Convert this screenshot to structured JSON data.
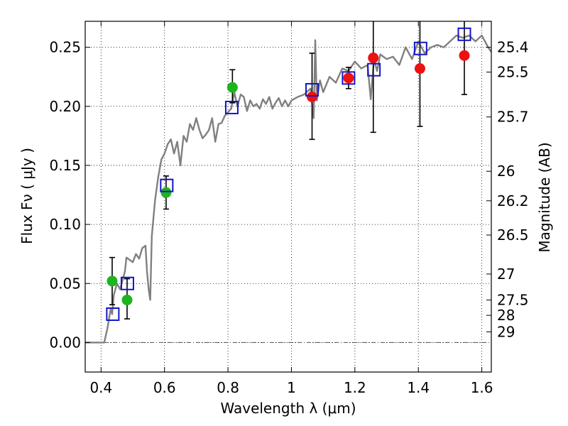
{
  "chart_data": {
    "type": "scatter",
    "xlabel": "Wavelength  λ (μm)",
    "ylabel": "Flux  Fν  ( μJy )",
    "y2label": "Magnitude (AB)",
    "xlim": [
      0.35,
      1.63
    ],
    "ylim": [
      -0.025,
      0.272
    ],
    "grid": true,
    "x_ticks": [
      0.4,
      0.6,
      0.8,
      1.0,
      1.2,
      1.4,
      1.6
    ],
    "x_tick_labels": [
      "0.4",
      "0.6",
      "0.8",
      "1",
      "1.2",
      "1.4",
      "1.6"
    ],
    "y_ticks": [
      0.0,
      0.05,
      0.1,
      0.15,
      0.2,
      0.25
    ],
    "y_tick_labels": [
      "0.00",
      "0.05",
      "0.10",
      "0.15",
      "0.20",
      "0.25"
    ],
    "mag_ticks": [
      {
        "label": "25.4",
        "flux": 0.25
      },
      {
        "label": "25.5",
        "flux": 0.229
      },
      {
        "label": "25.7",
        "flux": 0.191
      },
      {
        "label": "26",
        "flux": 0.145
      },
      {
        "label": "26.2",
        "flux": 0.12
      },
      {
        "label": "26.5",
        "flux": 0.091
      },
      {
        "label": "27",
        "flux": 0.058
      },
      {
        "label": "27.5",
        "flux": 0.036
      },
      {
        "label": "28",
        "flux": 0.023
      },
      {
        "label": "29",
        "flux": 0.009
      }
    ],
    "colors": {
      "model": "#808080",
      "green": "#1db51d",
      "red": "#ee1111",
      "blue_square": "#1414c8",
      "error": "#000000"
    },
    "series": [
      {
        "name": "Model SED",
        "style": "line",
        "x": [
          0.35,
          0.41,
          0.42,
          0.43,
          0.435,
          0.44,
          0.45,
          0.46,
          0.47,
          0.475,
          0.48,
          0.49,
          0.5,
          0.51,
          0.52,
          0.53,
          0.54,
          0.545,
          0.55,
          0.555,
          0.56,
          0.57,
          0.58,
          0.59,
          0.6,
          0.61,
          0.62,
          0.63,
          0.64,
          0.65,
          0.66,
          0.67,
          0.68,
          0.69,
          0.7,
          0.71,
          0.72,
          0.73,
          0.74,
          0.75,
          0.76,
          0.77,
          0.78,
          0.79,
          0.8,
          0.81,
          0.82,
          0.83,
          0.84,
          0.85,
          0.86,
          0.87,
          0.88,
          0.89,
          0.9,
          0.91,
          0.92,
          0.93,
          0.94,
          0.95,
          0.96,
          0.97,
          0.98,
          0.99,
          1.0,
          1.02,
          1.04,
          1.06,
          1.07,
          1.075,
          1.08,
          1.09,
          1.1,
          1.12,
          1.14,
          1.16,
          1.18,
          1.2,
          1.22,
          1.24,
          1.25,
          1.26,
          1.27,
          1.28,
          1.3,
          1.32,
          1.34,
          1.36,
          1.38,
          1.4,
          1.42,
          1.44,
          1.46,
          1.48,
          1.5,
          1.52,
          1.54,
          1.56,
          1.58,
          1.6,
          1.62,
          1.63
        ],
        "y": [
          0.0,
          0.0,
          0.012,
          0.028,
          0.024,
          0.04,
          0.05,
          0.045,
          0.055,
          0.06,
          0.072,
          0.07,
          0.068,
          0.075,
          0.071,
          0.08,
          0.082,
          0.06,
          0.045,
          0.036,
          0.09,
          0.12,
          0.14,
          0.155,
          0.16,
          0.168,
          0.172,
          0.16,
          0.17,
          0.15,
          0.175,
          0.17,
          0.185,
          0.18,
          0.19,
          0.18,
          0.173,
          0.176,
          0.18,
          0.19,
          0.17,
          0.185,
          0.186,
          0.192,
          0.195,
          0.198,
          0.212,
          0.2,
          0.21,
          0.208,
          0.196,
          0.205,
          0.2,
          0.202,
          0.198,
          0.206,
          0.202,
          0.208,
          0.198,
          0.203,
          0.207,
          0.2,
          0.205,
          0.2,
          0.205,
          0.208,
          0.21,
          0.215,
          0.19,
          0.256,
          0.205,
          0.222,
          0.212,
          0.225,
          0.22,
          0.232,
          0.23,
          0.238,
          0.232,
          0.235,
          0.206,
          0.24,
          0.23,
          0.244,
          0.24,
          0.242,
          0.235,
          0.25,
          0.24,
          0.255,
          0.245,
          0.25,
          0.252,
          0.25,
          0.255,
          0.26,
          0.258,
          0.26,
          0.255,
          0.26,
          0.25,
          0.246
        ]
      },
      {
        "name": "Green points",
        "style": "circle",
        "points": [
          {
            "x": 0.435,
            "y": 0.052,
            "err_lo": 0.032,
            "err_hi": 0.072
          },
          {
            "x": 0.482,
            "y": 0.036,
            "err_lo": 0.02,
            "err_hi": 0.054
          },
          {
            "x": 0.605,
            "y": 0.127,
            "err_lo": 0.113,
            "err_hi": 0.141
          },
          {
            "x": 0.814,
            "y": 0.216,
            "err_lo": 0.203,
            "err_hi": 0.231
          }
        ]
      },
      {
        "name": "Red points",
        "style": "circle",
        "points": [
          {
            "x": 1.065,
            "y": 0.208,
            "err_lo": 0.172,
            "err_hi": 0.245
          },
          {
            "x": 1.18,
            "y": 0.224,
            "err_lo": 0.215,
            "err_hi": 0.233
          },
          {
            "x": 1.258,
            "y": 0.241,
            "err_lo": 0.178,
            "err_hi": 0.285
          },
          {
            "x": 1.405,
            "y": 0.232,
            "err_lo": 0.183,
            "err_hi": 0.285
          },
          {
            "x": 1.545,
            "y": 0.243,
            "err_lo": 0.21,
            "err_hi": 0.285
          }
        ]
      },
      {
        "name": "Model photometry",
        "style": "square",
        "points": [
          {
            "x": 0.437,
            "y": 0.024
          },
          {
            "x": 0.483,
            "y": 0.05
          },
          {
            "x": 0.607,
            "y": 0.133
          },
          {
            "x": 0.812,
            "y": 0.199
          },
          {
            "x": 1.065,
            "y": 0.214
          },
          {
            "x": 1.18,
            "y": 0.224
          },
          {
            "x": 1.26,
            "y": 0.231
          },
          {
            "x": 1.407,
            "y": 0.249
          },
          {
            "x": 1.545,
            "y": 0.261
          }
        ]
      }
    ]
  }
}
